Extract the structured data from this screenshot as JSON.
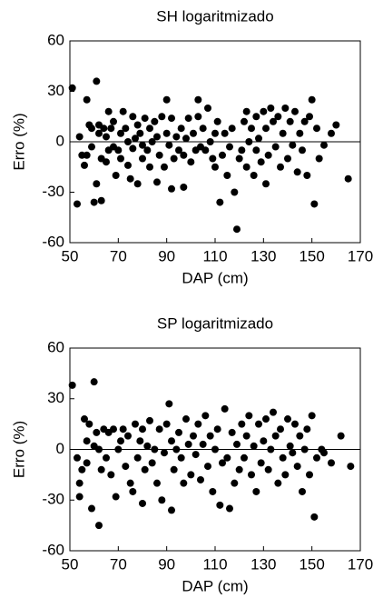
{
  "chart_data": [
    {
      "type": "scatter",
      "title": "SH logaritmizado",
      "xlabel": "DAP (cm)",
      "ylabel": "Erro (%)",
      "color": "#000000",
      "hline": 0,
      "xlim": [
        50,
        170
      ],
      "ylim": [
        -60,
        60
      ],
      "xticks": [
        50,
        70,
        90,
        110,
        130,
        150,
        170
      ],
      "yticks": [
        -60,
        -30,
        0,
        30,
        60
      ],
      "x": [
        51,
        53,
        54,
        55,
        56,
        57,
        57,
        58,
        59,
        59,
        60,
        61,
        61,
        62,
        62,
        63,
        63,
        64,
        65,
        65,
        66,
        66,
        67,
        68,
        68,
        69,
        70,
        71,
        71,
        72,
        73,
        74,
        74,
        75,
        76,
        76,
        77,
        78,
        78,
        79,
        80,
        80,
        81,
        82,
        83,
        83,
        84,
        85,
        86,
        86,
        87,
        88,
        89,
        90,
        90,
        91,
        92,
        92,
        93,
        94,
        95,
        96,
        97,
        97,
        98,
        99,
        100,
        101,
        102,
        103,
        103,
        104,
        105,
        106,
        107,
        108,
        109,
        110,
        110,
        111,
        112,
        113,
        114,
        115,
        116,
        117,
        118,
        119,
        120,
        121,
        122,
        123,
        123,
        124,
        125,
        126,
        127,
        127,
        128,
        129,
        130,
        131,
        131,
        132,
        133,
        134,
        135,
        136,
        137,
        138,
        139,
        140,
        141,
        142,
        143,
        144,
        145,
        146,
        147,
        148,
        149,
        150,
        151,
        152,
        153,
        155,
        158,
        160,
        165
      ],
      "y": [
        32,
        -37,
        3,
        -8,
        -14,
        25,
        -8,
        10,
        -3,
        8,
        -36,
        36,
        -25,
        5,
        10,
        -35,
        -10,
        8,
        3,
        -12,
        18,
        -5,
        8,
        12,
        -3,
        -20,
        -5,
        5,
        -10,
        18,
        8,
        0,
        -14,
        -22,
        15,
        -4,
        2,
        -25,
        10,
        5,
        -10,
        -2,
        14,
        -5,
        -15,
        8,
        0,
        12,
        -24,
        3,
        -8,
        15,
        -15,
        5,
        25,
        -2,
        14,
        -28,
        -10,
        3,
        -5,
        8,
        -8,
        -27,
        2,
        14,
        -12,
        5,
        -5,
        25,
        15,
        -3,
        8,
        -5,
        20,
        0,
        -10,
        5,
        -15,
        12,
        -36,
        -8,
        5,
        -20,
        -3,
        8,
        -30,
        -52,
        -10,
        -5,
        12,
        18,
        -15,
        0,
        8,
        -20,
        15,
        -5,
        2,
        -12,
        18,
        8,
        -25,
        -8,
        20,
        12,
        -3,
        15,
        -15,
        5,
        20,
        -10,
        12,
        -2,
        18,
        -18,
        5,
        -5,
        12,
        -20,
        15,
        25,
        -37,
        8,
        -10,
        -2,
        5,
        10,
        -22
      ]
    },
    {
      "type": "scatter",
      "title": "SP logaritmizado",
      "xlabel": "DAP (cm)",
      "ylabel": "Erro (%)",
      "color": "#000000",
      "hline": 0,
      "xlim": [
        50,
        170
      ],
      "ylim": [
        -60,
        60
      ],
      "xticks": [
        50,
        70,
        90,
        110,
        130,
        150,
        170
      ],
      "yticks": [
        -60,
        -30,
        0,
        30,
        60
      ],
      "x": [
        51,
        53,
        54,
        54,
        55,
        56,
        57,
        57,
        58,
        59,
        60,
        60,
        61,
        62,
        62,
        63,
        64,
        65,
        66,
        67,
        68,
        69,
        70,
        71,
        72,
        73,
        74,
        75,
        76,
        77,
        78,
        79,
        80,
        80,
        81,
        82,
        83,
        84,
        85,
        86,
        87,
        88,
        89,
        90,
        91,
        92,
        92,
        93,
        94,
        95,
        96,
        97,
        98,
        99,
        100,
        101,
        102,
        103,
        104,
        105,
        106,
        107,
        108,
        109,
        110,
        111,
        112,
        113,
        114,
        115,
        116,
        117,
        118,
        119,
        120,
        121,
        122,
        123,
        124,
        125,
        126,
        127,
        128,
        129,
        130,
        131,
        132,
        133,
        134,
        135,
        136,
        137,
        138,
        139,
        140,
        141,
        142,
        143,
        144,
        145,
        146,
        147,
        148,
        149,
        150,
        151,
        152,
        154,
        155,
        158,
        162,
        166
      ],
      "y": [
        38,
        -5,
        -28,
        -20,
        -12,
        18,
        5,
        -8,
        15,
        -35,
        40,
        2,
        10,
        -45,
        0,
        -12,
        12,
        -5,
        10,
        -15,
        12,
        -28,
        0,
        5,
        12,
        -10,
        8,
        -20,
        -25,
        15,
        -5,
        5,
        -32,
        12,
        -12,
        2,
        17,
        -8,
        0,
        -20,
        12,
        -30,
        -2,
        15,
        27,
        -36,
        5,
        -12,
        0,
        10,
        -5,
        -20,
        18,
        3,
        -15,
        8,
        -3,
        15,
        -18,
        3,
        20,
        -10,
        8,
        -25,
        0,
        12,
        -33,
        -8,
        24,
        -5,
        -35,
        10,
        -20,
        3,
        -12,
        15,
        -5,
        8,
        20,
        -15,
        2,
        -25,
        15,
        -8,
        5,
        18,
        -12,
        0,
        22,
        8,
        -20,
        12,
        -5,
        -15,
        18,
        2,
        -2,
        15,
        -10,
        8,
        -25,
        0,
        12,
        -15,
        20,
        -40,
        -5,
        0,
        -2,
        -8,
        8,
        -10
      ]
    }
  ]
}
